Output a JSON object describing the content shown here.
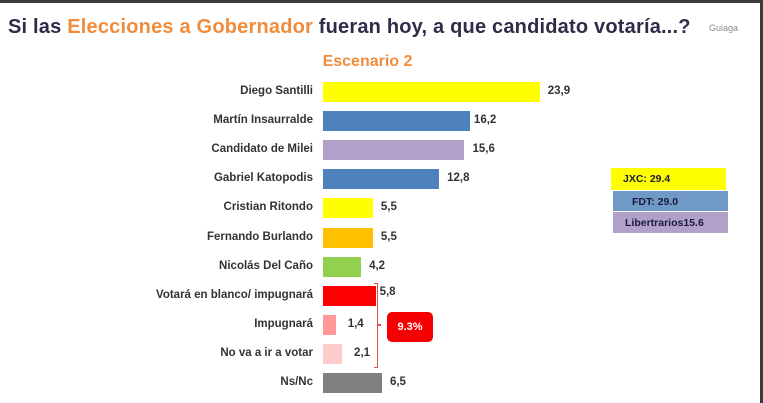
{
  "header": {
    "title_pre": "Si las ",
    "title_highlight": "Elecciones a Gobernador",
    "title_post": " fueran hoy, a que candidato votaría...?",
    "watermark": "Guiaga",
    "subtitle": "Escenario 2"
  },
  "chart_data": {
    "type": "bar",
    "orientation": "horizontal",
    "title": "Si las Elecciones a Gobernador fueran hoy, a que candidato votaría...?",
    "subtitle": "Escenario 2",
    "xlabel": "",
    "ylabel": "",
    "grid": false,
    "xlim": [
      0,
      25
    ],
    "categories": [
      "Diego Santilli",
      "Martín Insaurralde",
      "Candidato de Milei",
      "Gabriel Katopodis",
      "Cristian Ritondo",
      "Fernando Burlando",
      "Nicolás Del Caño",
      "Votará en blanco/ impugnará",
      "Impugnará",
      "No va a ir a votar",
      "Ns/Nc"
    ],
    "values": [
      23.9,
      16.2,
      15.6,
      12.8,
      5.5,
      5.5,
      4.2,
      5.8,
      1.4,
      2.1,
      6.5
    ],
    "value_labels": [
      "23,9",
      "16,2",
      "15,6",
      "12,8",
      "5,5",
      "5,5",
      "4,2",
      "5,8",
      "1,4",
      "2,1",
      "6,5"
    ],
    "colors": [
      "#ffff00",
      "#4f81bd",
      "#b1a0c7",
      "#4f81bd",
      "#ffff00",
      "#ffc000",
      "#92d050",
      "#ff0000",
      "#ff9999",
      "#ffcccc",
      "#808080"
    ],
    "annotations": [
      {
        "type": "bracket",
        "covers": [
          "Votará en blanco/ impugnará",
          "Impugnará",
          "No va a ir a votar"
        ],
        "label": "9.3%",
        "color": "#f40000"
      }
    ],
    "legend": {
      "placement": "right",
      "items": [
        {
          "label": "JXC: 29.4",
          "color": "#ffff00"
        },
        {
          "label": "FDT: 29.0",
          "color": "#7199c8"
        },
        {
          "label": "Libertrarios15.6",
          "color": "#b1a0c7"
        }
      ]
    }
  }
}
